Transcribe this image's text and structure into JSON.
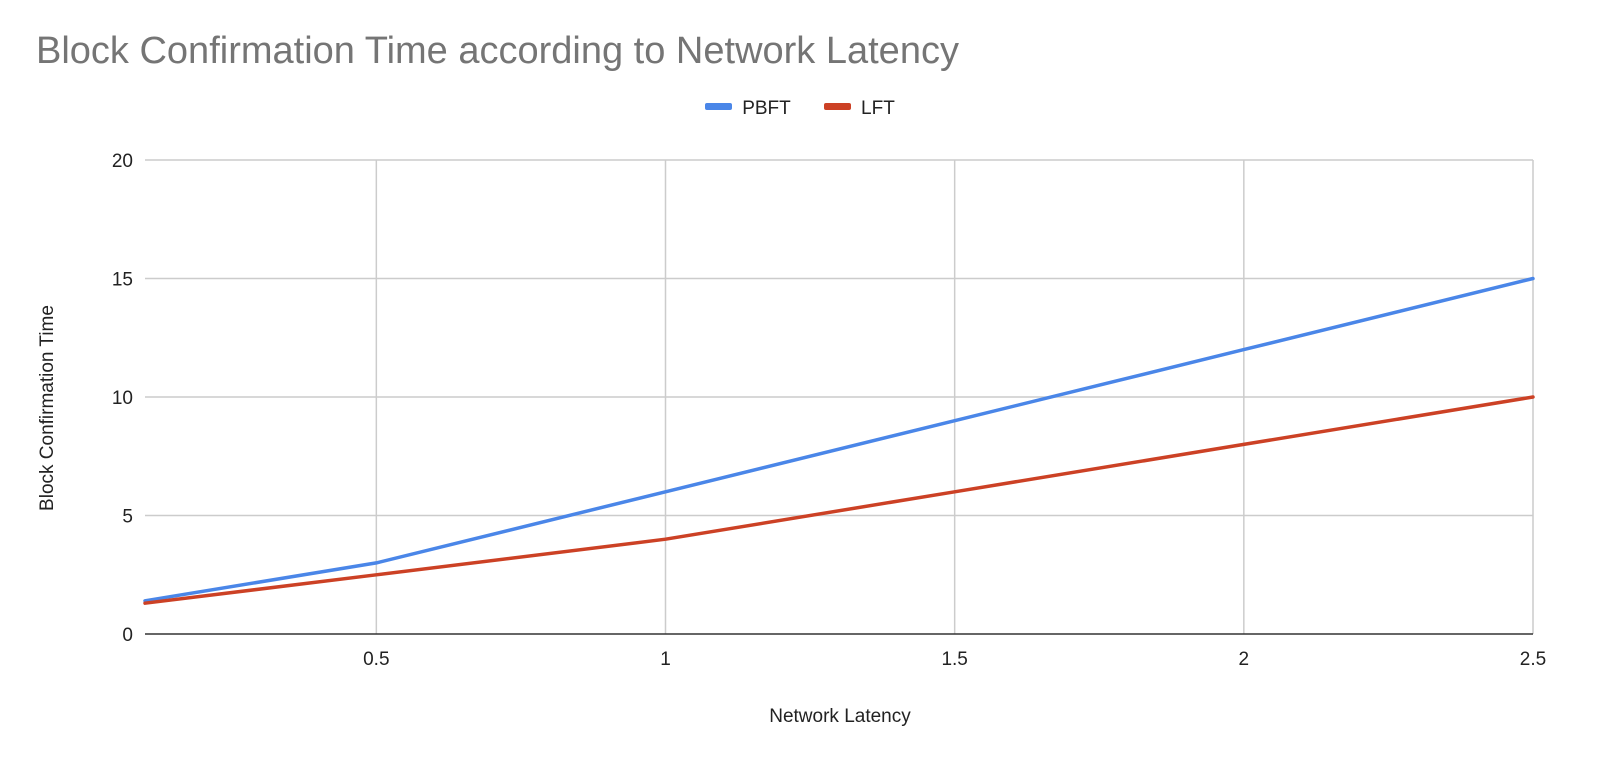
{
  "chart_data": {
    "type": "line",
    "title": "Block Confirmation Time according to Network Latency",
    "xlabel": "Network Latency",
    "ylabel": "Block Confirmation Time",
    "xlim": [
      0.1,
      2.5
    ],
    "ylim": [
      0,
      20
    ],
    "x_ticks": [
      {
        "value": 0.5,
        "label": "0.5"
      },
      {
        "value": 1,
        "label": "1"
      },
      {
        "value": 1.5,
        "label": "1.5"
      },
      {
        "value": 2,
        "label": "2"
      },
      {
        "value": 2.5,
        "label": "2.5"
      }
    ],
    "y_ticks": [
      {
        "value": 0,
        "label": "0"
      },
      {
        "value": 5,
        "label": "5"
      },
      {
        "value": 10,
        "label": "10"
      },
      {
        "value": 15,
        "label": "15"
      },
      {
        "value": 20,
        "label": "20"
      }
    ],
    "grid": true,
    "legend_position": "top-center",
    "series": [
      {
        "name": "PBFT",
        "color": "#4a86e8",
        "x": [
          0.1,
          0.5,
          1,
          1.5,
          2,
          2.5
        ],
        "y": [
          1.4,
          3,
          6,
          9,
          12,
          15
        ]
      },
      {
        "name": "LFT",
        "color": "#cc4125",
        "x": [
          0.1,
          0.5,
          1,
          1.5,
          2,
          2.5
        ],
        "y": [
          1.3,
          2.5,
          4,
          6,
          8,
          10
        ]
      }
    ],
    "gridline_color": "#cccccc",
    "axis_color": "#333333"
  }
}
